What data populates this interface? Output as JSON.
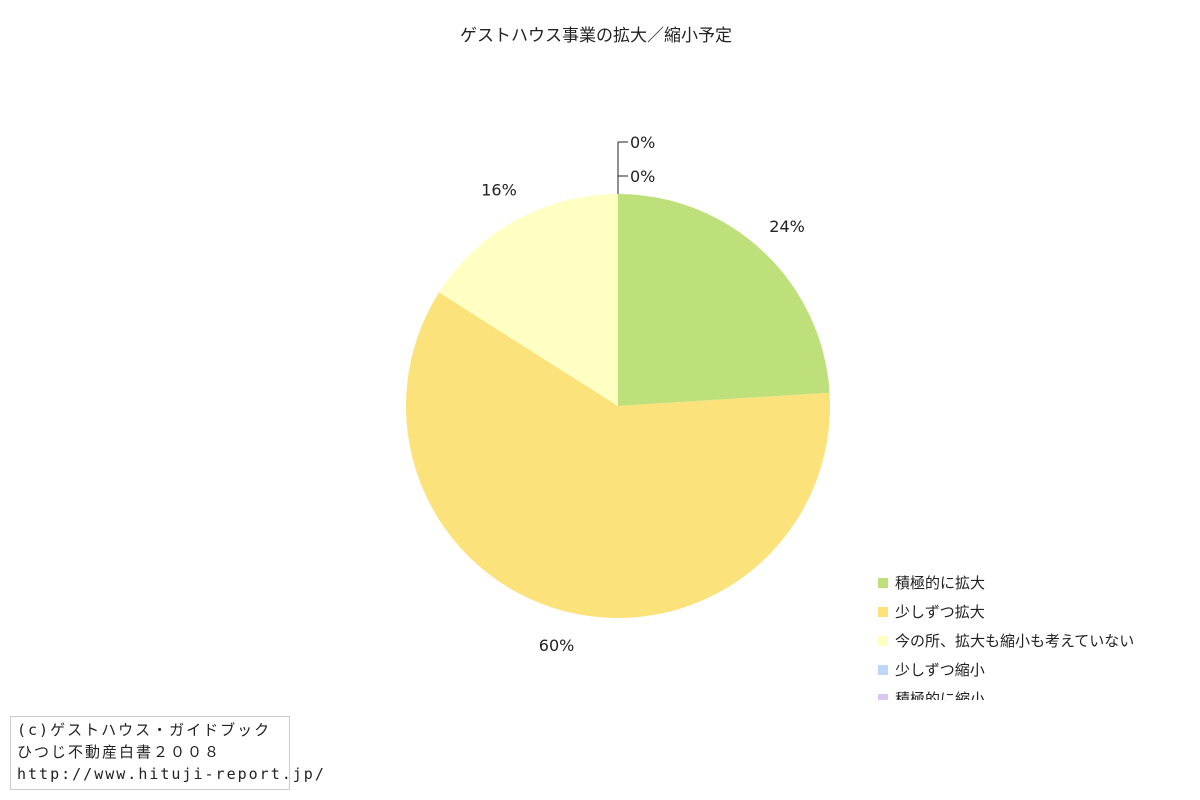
{
  "chart_data": {
    "type": "pie",
    "title": "ゲストハウス事業の拡大／縮小予定",
    "slices": [
      {
        "name": "積極的に拡大",
        "value": 24,
        "label": "24%",
        "color": "#bde07a"
      },
      {
        "name": "少しずつ拡大",
        "value": 60,
        "label": "60%",
        "color": "#fbe27a"
      },
      {
        "name": "今の所、拡大も縮小も考えていない",
        "value": 16,
        "label": "16%",
        "color": "#ffffc4"
      },
      {
        "name": "少しずつ縮小",
        "value": 0,
        "label": "0%",
        "color": "#bcd8f6"
      },
      {
        "name": "積極的に縮小",
        "value": 0,
        "label": "0%",
        "color": "#dcc6f2"
      }
    ],
    "start_angle": "12 o'clock",
    "direction": "clockwise",
    "legend_position": "bottom-right"
  },
  "credit": {
    "line1": "(c)ゲストハウス・ガイドブック",
    "line2": "ひつじ不動産白書２００８",
    "line3": "http://www.hituji-report.jp/"
  }
}
